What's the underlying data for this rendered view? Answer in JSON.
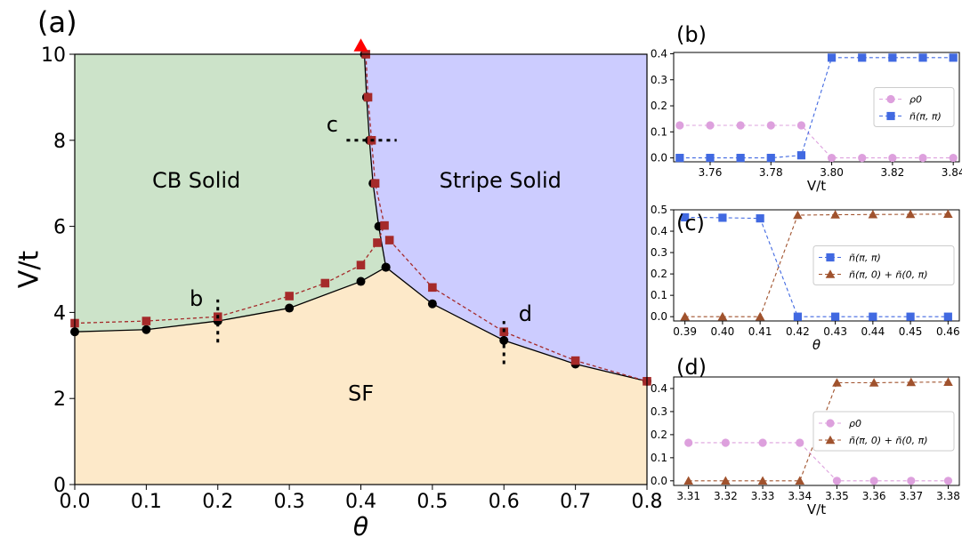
{
  "chart_data": [
    {
      "panel_label": "(a)",
      "type": "line",
      "xlabel": "θ",
      "ylabel": "V/t",
      "xlim": [
        0.0,
        0.8
      ],
      "ylim": [
        0,
        10
      ],
      "xticks": [
        0.0,
        0.1,
        0.2,
        0.3,
        0.4,
        0.5,
        0.6,
        0.7,
        0.8
      ],
      "yticks": [
        0,
        2,
        4,
        6,
        8,
        10
      ],
      "grid": false,
      "regions": [
        {
          "label": "CB Solid",
          "color": "#cce3c9"
        },
        {
          "label": "Stripe Solid",
          "color": "#ccccff"
        },
        {
          "label": "SF",
          "color": "#fde9c9"
        }
      ],
      "series": [
        {
          "marker": "circle",
          "color": "#000000",
          "linestyle": "solid",
          "points": [
            [
              0.0,
              3.55
            ],
            [
              0.1,
              3.6
            ],
            [
              0.2,
              3.8
            ],
            [
              0.3,
              4.1
            ],
            [
              0.4,
              4.72
            ],
            [
              0.435,
              5.05
            ],
            [
              0.5,
              4.2
            ],
            [
              0.6,
              3.35
            ],
            [
              0.7,
              2.8
            ],
            [
              0.8,
              2.4
            ]
          ]
        },
        {
          "marker": "circle",
          "color": "#000000",
          "linestyle": "solid",
          "points": [
            [
              0.405,
              10.0
            ],
            [
              0.408,
              9.0
            ],
            [
              0.412,
              8.0
            ],
            [
              0.417,
              7.0
            ],
            [
              0.425,
              6.0
            ],
            [
              0.435,
              5.05
            ]
          ]
        },
        {
          "marker": "square",
          "color": "#a52a2a",
          "linestyle": "dashed",
          "points": [
            [
              0.0,
              3.75
            ],
            [
              0.1,
              3.8
            ],
            [
              0.2,
              3.9
            ],
            [
              0.3,
              4.38
            ],
            [
              0.35,
              4.68
            ],
            [
              0.4,
              5.1
            ],
            [
              0.423,
              5.62
            ],
            [
              0.433,
              6.02
            ],
            [
              0.42,
              7.0
            ],
            [
              0.415,
              8.0
            ],
            [
              0.41,
              9.0
            ],
            [
              0.407,
              10.0
            ]
          ]
        },
        {
          "marker": "square",
          "color": "#a52a2a",
          "linestyle": "dashed",
          "points": [
            [
              0.44,
              5.68
            ],
            [
              0.5,
              4.58
            ],
            [
              0.6,
              3.55
            ],
            [
              0.7,
              2.88
            ],
            [
              0.8,
              2.4
            ]
          ]
        }
      ],
      "annotations": [
        {
          "text": "b",
          "x": 0.17,
          "y": 4.3
        },
        {
          "text": "c",
          "x": 0.36,
          "y": 8.35
        },
        {
          "text": "d",
          "x": 0.63,
          "y": 3.95
        }
      ],
      "cuts": [
        {
          "orientation": "vertical",
          "x": 0.2,
          "y_from": 3.3,
          "y_to": 4.3
        },
        {
          "orientation": "horizontal",
          "y": 8.0,
          "x_from": 0.38,
          "x_to": 0.45
        },
        {
          "orientation": "vertical",
          "x": 0.6,
          "y_from": 2.8,
          "y_to": 3.8
        }
      ],
      "marker_point": {
        "x": 0.4,
        "y": 10.2,
        "shape": "triangle",
        "color": "#ff0000"
      }
    },
    {
      "panel_label": "(b)",
      "type": "line",
      "xlabel": "V/t",
      "ylabel": "",
      "xlim": [
        3.748,
        3.842
      ],
      "ylim": [
        -0.015,
        0.405
      ],
      "xticks": [
        3.76,
        3.78,
        3.8,
        3.82,
        3.84
      ],
      "yticks": [
        0.0,
        0.1,
        0.2,
        0.3,
        0.4
      ],
      "legend_position": "center-right",
      "series": [
        {
          "name": "ρ0",
          "marker": "circle",
          "color": "#dda0dd",
          "x": [
            3.75,
            3.76,
            3.77,
            3.78,
            3.79,
            3.8,
            3.81,
            3.82,
            3.83,
            3.84
          ],
          "values": [
            0.125,
            0.125,
            0.125,
            0.125,
            0.125,
            0.0,
            0.0,
            0.0,
            0.0,
            0.0
          ]
        },
        {
          "name": "ñ(π, π)",
          "marker": "square",
          "color": "#4169e1",
          "x": [
            3.75,
            3.76,
            3.77,
            3.78,
            3.79,
            3.8,
            3.81,
            3.82,
            3.83,
            3.84
          ],
          "values": [
            0.0,
            0.0,
            0.0,
            0.0,
            0.01,
            0.385,
            0.385,
            0.385,
            0.385,
            0.385
          ]
        }
      ]
    },
    {
      "panel_label": "(c)",
      "type": "line",
      "xlabel": "θ",
      "ylabel": "",
      "xlim": [
        0.387,
        0.463
      ],
      "ylim": [
        -0.02,
        0.5
      ],
      "xticks": [
        0.39,
        0.4,
        0.41,
        0.42,
        0.43,
        0.44,
        0.45,
        0.46
      ],
      "yticks": [
        0.0,
        0.1,
        0.2,
        0.3,
        0.4,
        0.5
      ],
      "legend_position": "center-right",
      "series": [
        {
          "name": "ñ(π, π)",
          "marker": "square",
          "color": "#4169e1",
          "x": [
            0.39,
            0.4,
            0.41,
            0.42,
            0.43,
            0.44,
            0.45,
            0.46
          ],
          "values": [
            0.465,
            0.463,
            0.46,
            0.0,
            0.0,
            0.0,
            0.0,
            0.0
          ]
        },
        {
          "name": "ñ(π, 0) + ñ(0, π)",
          "marker": "triangle",
          "color": "#a0522d",
          "x": [
            0.39,
            0.4,
            0.41,
            0.42,
            0.43,
            0.44,
            0.45,
            0.46
          ],
          "values": [
            0.0,
            0.0,
            0.0,
            0.475,
            0.477,
            0.478,
            0.479,
            0.48
          ]
        }
      ]
    },
    {
      "panel_label": "(d)",
      "type": "line",
      "xlabel": "V/t",
      "ylabel": "",
      "xlim": [
        3.306,
        3.383
      ],
      "ylim": [
        -0.02,
        0.45
      ],
      "xticks": [
        3.31,
        3.32,
        3.33,
        3.34,
        3.35,
        3.36,
        3.37,
        3.38
      ],
      "yticks": [
        0.0,
        0.1,
        0.2,
        0.3,
        0.4
      ],
      "legend_position": "center-right",
      "series": [
        {
          "name": "ρ0",
          "marker": "circle",
          "color": "#dda0dd",
          "x": [
            3.31,
            3.32,
            3.33,
            3.34,
            3.35,
            3.36,
            3.37,
            3.38
          ],
          "values": [
            0.165,
            0.165,
            0.165,
            0.165,
            0.0,
            0.0,
            0.0,
            0.0
          ]
        },
        {
          "name": "ñ(π, 0) + ñ(0, π)",
          "marker": "triangle",
          "color": "#a0522d",
          "x": [
            3.31,
            3.32,
            3.33,
            3.34,
            3.35,
            3.36,
            3.37,
            3.38
          ],
          "values": [
            0.0,
            0.0,
            0.0,
            0.0,
            0.425,
            0.425,
            0.427,
            0.428
          ]
        }
      ]
    }
  ]
}
